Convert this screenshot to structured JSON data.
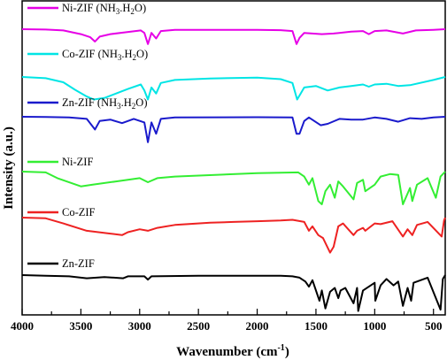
{
  "chart_data": {
    "type": "line",
    "title": "",
    "xlabel": "Wavenumber (cm",
    "xlabel_sup": "-1",
    "xlabel_suffix": ")",
    "ylabel": "Intensity (a.u.)",
    "x_range": [
      4000,
      400
    ],
    "x_ticks": [
      4000,
      3500,
      3000,
      2500,
      2000,
      1500,
      1000,
      500
    ],
    "series": [
      {
        "name": "Ni-ZIF (NH3.H2O)",
        "name_parts": [
          "Ni-ZIF (NH",
          "3",
          ".H",
          "2",
          "O)"
        ],
        "color": "#e600e6",
        "points": [
          [
            4000,
            0.0
          ],
          [
            3800,
            -0.3
          ],
          [
            3650,
            -1.0
          ],
          [
            3500,
            -4.0
          ],
          [
            3420,
            -6.5
          ],
          [
            3380,
            -10.0
          ],
          [
            3340,
            -6.0
          ],
          [
            3250,
            -4.0
          ],
          [
            3120,
            -2.5
          ],
          [
            2990,
            -1.0
          ],
          [
            2960,
            -3.0
          ],
          [
            2930,
            -12.0
          ],
          [
            2900,
            -3.0
          ],
          [
            2860,
            -7.5
          ],
          [
            2820,
            -1.5
          ],
          [
            2700,
            -0.5
          ],
          [
            2300,
            -0.5
          ],
          [
            2000,
            -0.5
          ],
          [
            1800,
            -0.8
          ],
          [
            1700,
            -1.5
          ],
          [
            1665,
            -12.0
          ],
          [
            1640,
            -7.0
          ],
          [
            1600,
            -3.0
          ],
          [
            1450,
            -4.0
          ],
          [
            1350,
            -3.5
          ],
          [
            1200,
            -2.0
          ],
          [
            1100,
            -1.5
          ],
          [
            1050,
            -4.0
          ],
          [
            1000,
            -1.5
          ],
          [
            900,
            -1.0
          ],
          [
            760,
            -3.5
          ],
          [
            650,
            -1.0
          ],
          [
            500,
            -0.5
          ],
          [
            400,
            0.0
          ]
        ]
      },
      {
        "name": "Co-ZIF (NH3.H2O)",
        "name_parts": [
          "Co-ZIF (NH",
          "3",
          ".H",
          "2",
          "O)"
        ],
        "color": "#00e5e5",
        "points": [
          [
            4000,
            0.0
          ],
          [
            3800,
            -0.8
          ],
          [
            3650,
            -3.5
          ],
          [
            3550,
            -8.5
          ],
          [
            3450,
            -13.0
          ],
          [
            3390,
            -15.0
          ],
          [
            3300,
            -14.0
          ],
          [
            3200,
            -11.0
          ],
          [
            3100,
            -8.0
          ],
          [
            2990,
            -5.0
          ],
          [
            2960,
            -9.0
          ],
          [
            2930,
            -15.0
          ],
          [
            2900,
            -7.0
          ],
          [
            2860,
            -11.0
          ],
          [
            2820,
            -4.0
          ],
          [
            2700,
            -2.0
          ],
          [
            2400,
            -1.0
          ],
          [
            2000,
            -0.5
          ],
          [
            1800,
            -1.5
          ],
          [
            1700,
            -4.0
          ],
          [
            1660,
            -15.0
          ],
          [
            1630,
            -11.0
          ],
          [
            1600,
            -7.0
          ],
          [
            1500,
            -6.0
          ],
          [
            1400,
            -9.0
          ],
          [
            1300,
            -7.0
          ],
          [
            1200,
            -6.0
          ],
          [
            1100,
            -5.0
          ],
          [
            1050,
            -6.5
          ],
          [
            1000,
            -5.0
          ],
          [
            900,
            -4.5
          ],
          [
            800,
            -6.0
          ],
          [
            700,
            -5.5
          ],
          [
            500,
            -2.0
          ],
          [
            400,
            0.0
          ]
        ]
      },
      {
        "name": "Zn-ZIF (NH3.H2O)",
        "name_parts": [
          "Zn-ZIF (NH",
          "3",
          ".H",
          "2",
          "O)"
        ],
        "color": "#1a1acc",
        "points": [
          [
            4000,
            0.0
          ],
          [
            3800,
            -0.2
          ],
          [
            3600,
            -0.5
          ],
          [
            3450,
            -1.5
          ],
          [
            3380,
            -9.0
          ],
          [
            3340,
            -3.0
          ],
          [
            3250,
            -2.0
          ],
          [
            3150,
            -4.5
          ],
          [
            3050,
            -1.5
          ],
          [
            2960,
            -4.0
          ],
          [
            2930,
            -18.0
          ],
          [
            2900,
            -4.0
          ],
          [
            2860,
            -12.0
          ],
          [
            2820,
            -1.5
          ],
          [
            2700,
            -0.5
          ],
          [
            2000,
            -0.3
          ],
          [
            1700,
            -0.5
          ],
          [
            1665,
            -12.0
          ],
          [
            1640,
            -12.0
          ],
          [
            1600,
            -3.0
          ],
          [
            1560,
            -0.5
          ],
          [
            1460,
            -6.0
          ],
          [
            1400,
            -5.0
          ],
          [
            1300,
            -1.5
          ],
          [
            1200,
            -2.0
          ],
          [
            1100,
            -2.0
          ],
          [
            1000,
            -0.5
          ],
          [
            900,
            -1.5
          ],
          [
            800,
            -3.5
          ],
          [
            700,
            -1.0
          ],
          [
            600,
            -1.5
          ],
          [
            500,
            -0.5
          ],
          [
            400,
            0.0
          ]
        ]
      },
      {
        "name": "Ni-ZIF",
        "color": "#33ee33",
        "points": [
          [
            4000,
            0.0
          ],
          [
            3800,
            -0.5
          ],
          [
            3700,
            -4.0
          ],
          [
            3500,
            -9.0
          ],
          [
            3400,
            -8.0
          ],
          [
            3200,
            -6.0
          ],
          [
            3000,
            -4.0
          ],
          [
            2930,
            -6.5
          ],
          [
            2850,
            -4.0
          ],
          [
            2700,
            -3.0
          ],
          [
            2000,
            -1.0
          ],
          [
            1650,
            -0.5
          ],
          [
            1600,
            -3.0
          ],
          [
            1560,
            -8.0
          ],
          [
            1530,
            -4.0
          ],
          [
            1480,
            -18.0
          ],
          [
            1450,
            -20.0
          ],
          [
            1420,
            -12.0
          ],
          [
            1380,
            -8.0
          ],
          [
            1340,
            -16.0
          ],
          [
            1310,
            -6.0
          ],
          [
            1270,
            -9.0
          ],
          [
            1180,
            -17.0
          ],
          [
            1150,
            -7.0
          ],
          [
            1100,
            -5.0
          ],
          [
            1080,
            -12.0
          ],
          [
            1000,
            -8.0
          ],
          [
            950,
            -3.0
          ],
          [
            870,
            -1.5
          ],
          [
            800,
            -2.0
          ],
          [
            760,
            -20.0
          ],
          [
            700,
            -10.0
          ],
          [
            680,
            -18.0
          ],
          [
            640,
            -8.0
          ],
          [
            550,
            -4.0
          ],
          [
            480,
            -16.0
          ],
          [
            440,
            -3.0
          ],
          [
            400,
            0.0
          ]
        ]
      },
      {
        "name": "Co-ZIF",
        "color": "#ee2222",
        "points": [
          [
            4000,
            0.0
          ],
          [
            3800,
            -0.5
          ],
          [
            3650,
            -4.0
          ],
          [
            3450,
            -9.0
          ],
          [
            3250,
            -11.0
          ],
          [
            3150,
            -12.0
          ],
          [
            3100,
            -10.0
          ],
          [
            3000,
            -8.0
          ],
          [
            2930,
            -9.0
          ],
          [
            2850,
            -7.0
          ],
          [
            2700,
            -5.0
          ],
          [
            2400,
            -3.5
          ],
          [
            2200,
            -3.0
          ],
          [
            2000,
            -2.5
          ],
          [
            1800,
            -2.0
          ],
          [
            1700,
            -1.5
          ],
          [
            1600,
            -3.0
          ],
          [
            1560,
            -9.0
          ],
          [
            1530,
            -6.0
          ],
          [
            1480,
            -12.0
          ],
          [
            1440,
            -14.0
          ],
          [
            1380,
            -24.0
          ],
          [
            1350,
            -20.0
          ],
          [
            1310,
            -6.0
          ],
          [
            1270,
            -4.0
          ],
          [
            1180,
            -12.0
          ],
          [
            1150,
            -9.0
          ],
          [
            1100,
            -7.0
          ],
          [
            1080,
            -9.0
          ],
          [
            1000,
            -4.0
          ],
          [
            950,
            -4.5
          ],
          [
            850,
            -2.5
          ],
          [
            760,
            -13.0
          ],
          [
            720,
            -8.0
          ],
          [
            680,
            -12.0
          ],
          [
            640,
            -5.0
          ],
          [
            550,
            -3.0
          ],
          [
            430,
            -13.0
          ],
          [
            410,
            -2.0
          ],
          [
            400,
            0.0
          ]
        ]
      },
      {
        "name": "Zn-ZIF",
        "color": "#000000",
        "points": [
          [
            4000,
            0.0
          ],
          [
            3800,
            -0.5
          ],
          [
            3600,
            -1.0
          ],
          [
            3450,
            -2.5
          ],
          [
            3300,
            -1.5
          ],
          [
            3140,
            -2.5
          ],
          [
            3100,
            -1.0
          ],
          [
            2960,
            -1.0
          ],
          [
            2930,
            -3.5
          ],
          [
            2900,
            -1.0
          ],
          [
            2500,
            -0.5
          ],
          [
            2000,
            -0.5
          ],
          [
            1800,
            -0.5
          ],
          [
            1700,
            -1.0
          ],
          [
            1640,
            -2.0
          ],
          [
            1590,
            -5.0
          ],
          [
            1560,
            -9.0
          ],
          [
            1530,
            -4.0
          ],
          [
            1470,
            -20.0
          ],
          [
            1450,
            -12.0
          ],
          [
            1420,
            -26.0
          ],
          [
            1380,
            -13.0
          ],
          [
            1340,
            -10.0
          ],
          [
            1310,
            -18.0
          ],
          [
            1290,
            -12.0
          ],
          [
            1250,
            -10.0
          ],
          [
            1180,
            -22.0
          ],
          [
            1150,
            -10.0
          ],
          [
            1140,
            -28.0
          ],
          [
            1100,
            -12.0
          ],
          [
            1000,
            -6.0
          ],
          [
            995,
            -20.0
          ],
          [
            950,
            -8.0
          ],
          [
            900,
            -3.0
          ],
          [
            840,
            -8.0
          ],
          [
            800,
            -5.0
          ],
          [
            760,
            -24.0
          ],
          [
            720,
            -10.0
          ],
          [
            690,
            -20.0
          ],
          [
            670,
            -6.0
          ],
          [
            550,
            -2.0
          ],
          [
            440,
            -27.0
          ],
          [
            420,
            -3.0
          ],
          [
            400,
            0.0
          ]
        ]
      }
    ]
  }
}
